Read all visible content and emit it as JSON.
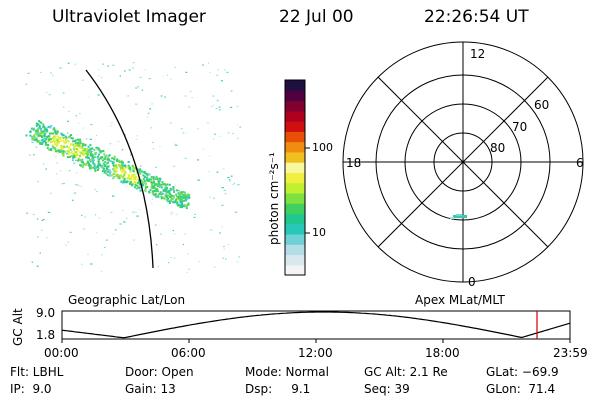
{
  "header": {
    "instrument": "Ultraviolet Imager",
    "date": "22 Jul 00",
    "time": "22:26:54 UT"
  },
  "panels": {
    "geo_label": "Geographic Lat/Lon",
    "apex_label": "Apex MLat/MLT"
  },
  "colorbar": {
    "unit_label": "photon cm⁻²s⁻¹",
    "tick_100": "100",
    "tick_10": "10",
    "colors": [
      "#f4f4f4",
      "#d8e8ee",
      "#b4dde8",
      "#6fd0d6",
      "#28c8b8",
      "#20c890",
      "#40d060",
      "#80e040",
      "#c0f030",
      "#f0f040",
      "#f8f8a0",
      "#f0c020",
      "#f08c10",
      "#e85008",
      "#d01010",
      "#b00020",
      "#800030",
      "#500040",
      "#201040"
    ]
  },
  "polar": {
    "mlt_12": "12",
    "mlt_18": "18",
    "mlt_6": "6",
    "mlt_0": "0",
    "lat_60": "60",
    "lat_70": "70",
    "lat_80": "80"
  },
  "altitude_plot": {
    "ylabel": "GC Alt",
    "ytick_top": "9.0",
    "ytick_bottom": "1.8",
    "xticks": [
      "00:00",
      "06:00",
      "12:00",
      "18:00",
      "23:59"
    ],
    "marker_color": "#cc0000"
  },
  "info": {
    "filter": "Flt: LBHL",
    "ip": "IP:  9.0",
    "door": "Door: Open",
    "gain": "Gain: 13",
    "mode": "Mode: Normal",
    "dsp": "Dsp:     9.1",
    "gcalt": "GC Alt: 2.1 Re",
    "seq": "Seq: 39",
    "glat": "GLat: −69.9",
    "glon": "GLon:  71.4"
  }
}
